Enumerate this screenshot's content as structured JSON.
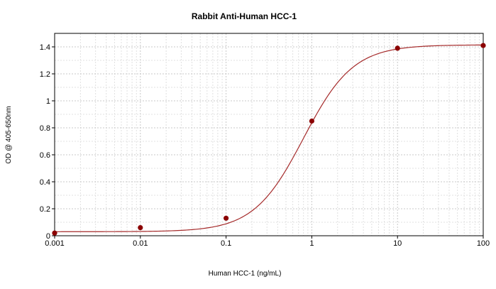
{
  "chart_data": {
    "type": "scatter",
    "title": "Rabbit Anti-Human HCC-1",
    "xlabel": "Human HCC-1 (ng/mL)",
    "ylabel": "OD @ 405-650nm",
    "xscale": "log",
    "xlim": [
      0.001,
      100
    ],
    "ylim": [
      0,
      1.5
    ],
    "xticks": [
      0.001,
      0.01,
      0.1,
      1,
      10,
      100
    ],
    "xtick_labels": [
      "0.001",
      "0.01",
      "0.1",
      "1",
      "10",
      "100"
    ],
    "yticks": [
      0,
      0.2,
      0.4,
      0.6,
      0.8,
      1,
      1.2,
      1.4
    ],
    "ytick_labels": [
      "0",
      "0.2",
      "0.4",
      "0.6",
      "0.8",
      "1",
      "1.2",
      "1.4"
    ],
    "grid": true,
    "points": {
      "x": [
        0.001,
        0.01,
        0.1,
        1,
        10,
        100
      ],
      "y": [
        0.02,
        0.06,
        0.13,
        0.85,
        1.39,
        1.41
      ],
      "color": "#8b0000"
    },
    "fit_curve": {
      "model": "4PL",
      "bottom": 0.03,
      "top": 1.415,
      "ec50": 0.8,
      "hill": 1.5,
      "color": "#a52a2a"
    },
    "colors": {
      "grid_major": "#c8c8c8",
      "grid_minor": "#e0e0e0",
      "axes": "#000000"
    }
  }
}
